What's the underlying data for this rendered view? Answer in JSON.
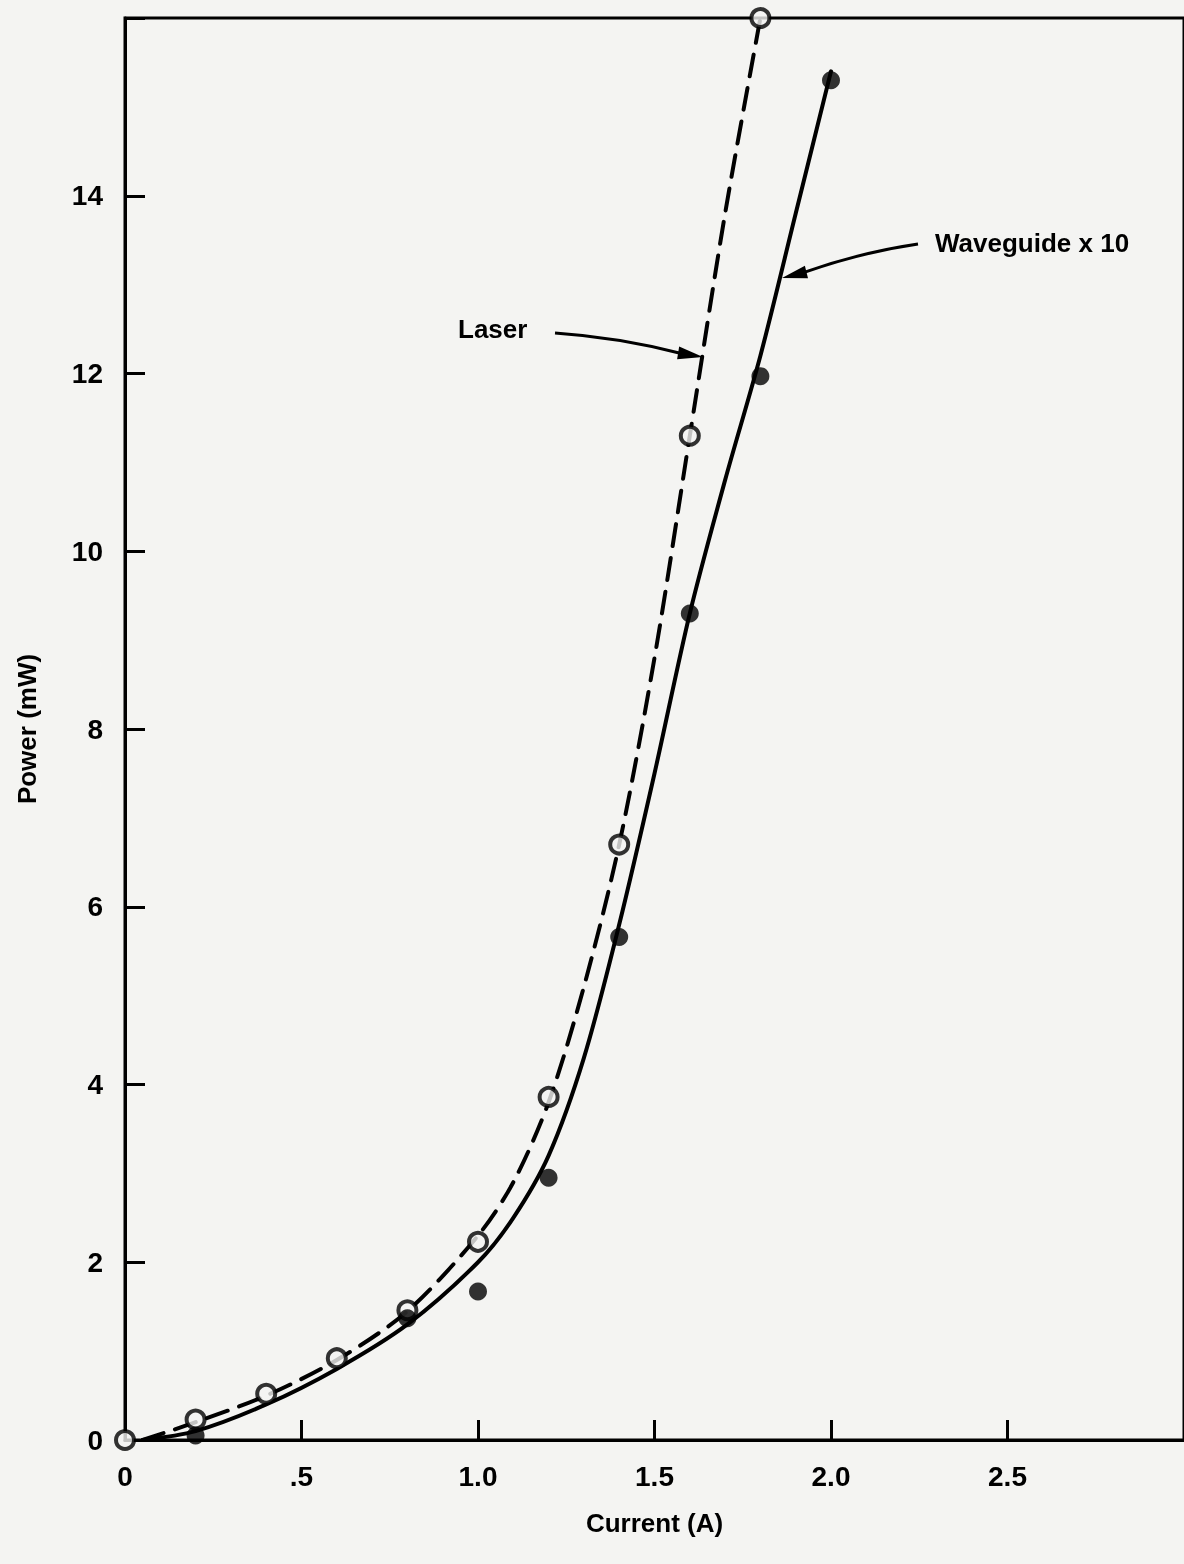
{
  "chart_data": {
    "type": "scatter",
    "xlabel": "Current (A)",
    "ylabel": "Power (mW)",
    "xlim": [
      0,
      3
    ],
    "xticks": [
      0,
      {
        "value": 0.5,
        "label": ".5"
      },
      {
        "value": 1,
        "label": "1.0"
      },
      {
        "value": 1.5,
        "label": "1.5"
      },
      {
        "value": 2,
        "label": "2.0"
      },
      {
        "value": 2.5,
        "label": "2.5"
      }
    ],
    "ylim": [
      0,
      16
    ],
    "yticks": [
      0,
      2,
      4,
      6,
      8,
      10,
      12,
      14,
      {
        "value": 16,
        "label": null
      }
    ],
    "grid": false,
    "series": [
      {
        "marker": "circle",
        "color": "#000000",
        "x": [
          0,
          0.2,
          0.4,
          0.6,
          0.8,
          1.0,
          1.2,
          1.4,
          1.6,
          1.8
        ],
        "values": [
          0,
          0.23,
          0.52,
          0.92,
          1.46,
          2.23,
          3.86,
          6.7,
          11.3,
          16.0
        ]
      },
      {
        "marker": "circle",
        "color": "#000000",
        "x": [
          0.2,
          0.8,
          1.0,
          1.2,
          1.4,
          1.6,
          1.8,
          2.0
        ],
        "values": [
          0.05,
          1.37,
          1.67,
          2.95,
          5.66,
          9.3,
          11.97,
          15.3
        ]
      },
      {
        "type": "line",
        "line_style": "dashed",
        "color": "#000000",
        "x": [
          0.05,
          0.2,
          0.4,
          0.6,
          0.8,
          1.0,
          1.1,
          1.2,
          1.3,
          1.4,
          1.5,
          1.6,
          1.7,
          1.8
        ],
        "values": [
          0,
          0.2,
          0.5,
          0.9,
          1.45,
          2.3,
          2.9,
          3.8,
          5.1,
          6.7,
          8.8,
          11.3,
          13.8,
          16
        ]
      },
      {
        "type": "line",
        "line_style": "solid",
        "color": "#000000",
        "x": [
          0.05,
          0.2,
          0.4,
          0.6,
          0.8,
          1.0,
          1.1,
          1.2,
          1.3,
          1.4,
          1.5,
          1.6,
          1.7,
          1.8,
          1.9,
          2.0
        ],
        "values": [
          0,
          0.1,
          0.4,
          0.8,
          1.3,
          2.0,
          2.5,
          3.2,
          4.3,
          5.8,
          7.5,
          9.3,
          10.8,
          12.2,
          13.8,
          15.4
        ]
      }
    ],
    "annotations": [
      "Laser",
      "Waveguide x 10"
    ]
  }
}
